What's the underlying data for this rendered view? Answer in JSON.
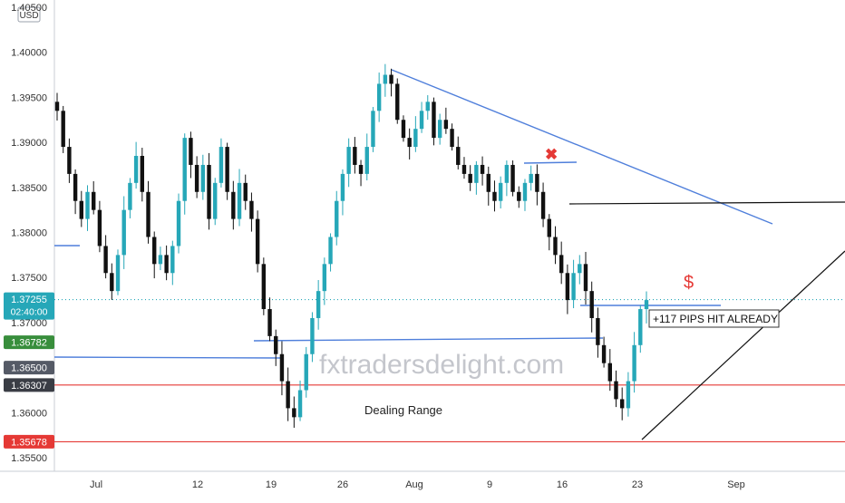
{
  "chart_data": {
    "type": "candlestick",
    "currency_label": "USD",
    "watermark": "fxtradersdelight.com",
    "y_axis": {
      "ylim": [
        1.3535,
        1.4058
      ],
      "tick_labels": [
        "1.40500",
        "1.40000",
        "1.39500",
        "1.39000",
        "1.38500",
        "1.38000",
        "1.37500",
        "1.37000",
        "1.36500",
        "1.36000",
        "1.35500"
      ]
    },
    "x_axis": {
      "tick_labels": [
        "Jul",
        "12",
        "19",
        "26",
        "Aug",
        "9",
        "16",
        "23",
        "Sep"
      ]
    },
    "price_badges": [
      {
        "label": "1.37255",
        "sublabel": "02:40:00",
        "price": 1.37255,
        "color": "#26a7b8",
        "role": "current"
      },
      {
        "label": "1.36782",
        "price": 1.36782,
        "color": "#388e3c"
      },
      {
        "label": "1.36500",
        "price": 1.365,
        "color": "#555a66"
      },
      {
        "label": "1.36307",
        "price": 1.36307,
        "color": "#3a3d45"
      },
      {
        "label": "1.35678",
        "price": 1.35678,
        "color": "#e53935"
      }
    ],
    "horizontal_levels": [
      {
        "price": 1.36307,
        "color": "#e53935"
      },
      {
        "price": 1.35678,
        "color": "#e53935"
      },
      {
        "price": 1.37255,
        "color": "#26a7b8",
        "style": "dotted"
      }
    ],
    "annotations": {
      "dealing_range": "Dealing Range",
      "pips_callout": "+117 PIPS HIT ALREADY",
      "dollar_sign": "$",
      "cross_mark": "✖"
    },
    "colors": {
      "up": "#26a7b8",
      "down": "#111111",
      "trend": "#4f7fdb",
      "support": "#e53935"
    },
    "candle_path_closes": [
      1.3935,
      1.3895,
      1.3865,
      1.3835,
      1.3815,
      1.3845,
      1.3825,
      1.3785,
      1.3755,
      1.3735,
      1.3775,
      1.3825,
      1.3855,
      1.3885,
      1.3845,
      1.3795,
      1.3765,
      1.3775,
      1.3755,
      1.3785,
      1.3835,
      1.3905,
      1.3875,
      1.3845,
      1.3875,
      1.3815,
      1.3855,
      1.3895,
      1.3845,
      1.3815,
      1.3855,
      1.3835,
      1.3815,
      1.3765,
      1.3715,
      1.3685,
      1.3665,
      1.3635,
      1.3605,
      1.3595,
      1.3625,
      1.3665,
      1.3705,
      1.3735,
      1.3765,
      1.3795,
      1.3835,
      1.3865,
      1.3895,
      1.3875,
      1.3865,
      1.3895,
      1.3935,
      1.3965,
      1.3975,
      1.3965,
      1.3925,
      1.3905,
      1.3895,
      1.3915,
      1.3935,
      1.3945,
      1.3905,
      1.3925,
      1.3915,
      1.3895,
      1.3875,
      1.3865,
      1.3855,
      1.3875,
      1.3865,
      1.3845,
      1.3835,
      1.3855,
      1.3875,
      1.3845,
      1.3835,
      1.3855,
      1.3865,
      1.3845,
      1.3815,
      1.3795,
      1.3775,
      1.3755,
      1.3725,
      1.3755,
      1.3765,
      1.3735,
      1.3705,
      1.3675,
      1.3655,
      1.3635,
      1.3615,
      1.3605,
      1.3635,
      1.3675,
      1.3715,
      1.3725
    ]
  }
}
